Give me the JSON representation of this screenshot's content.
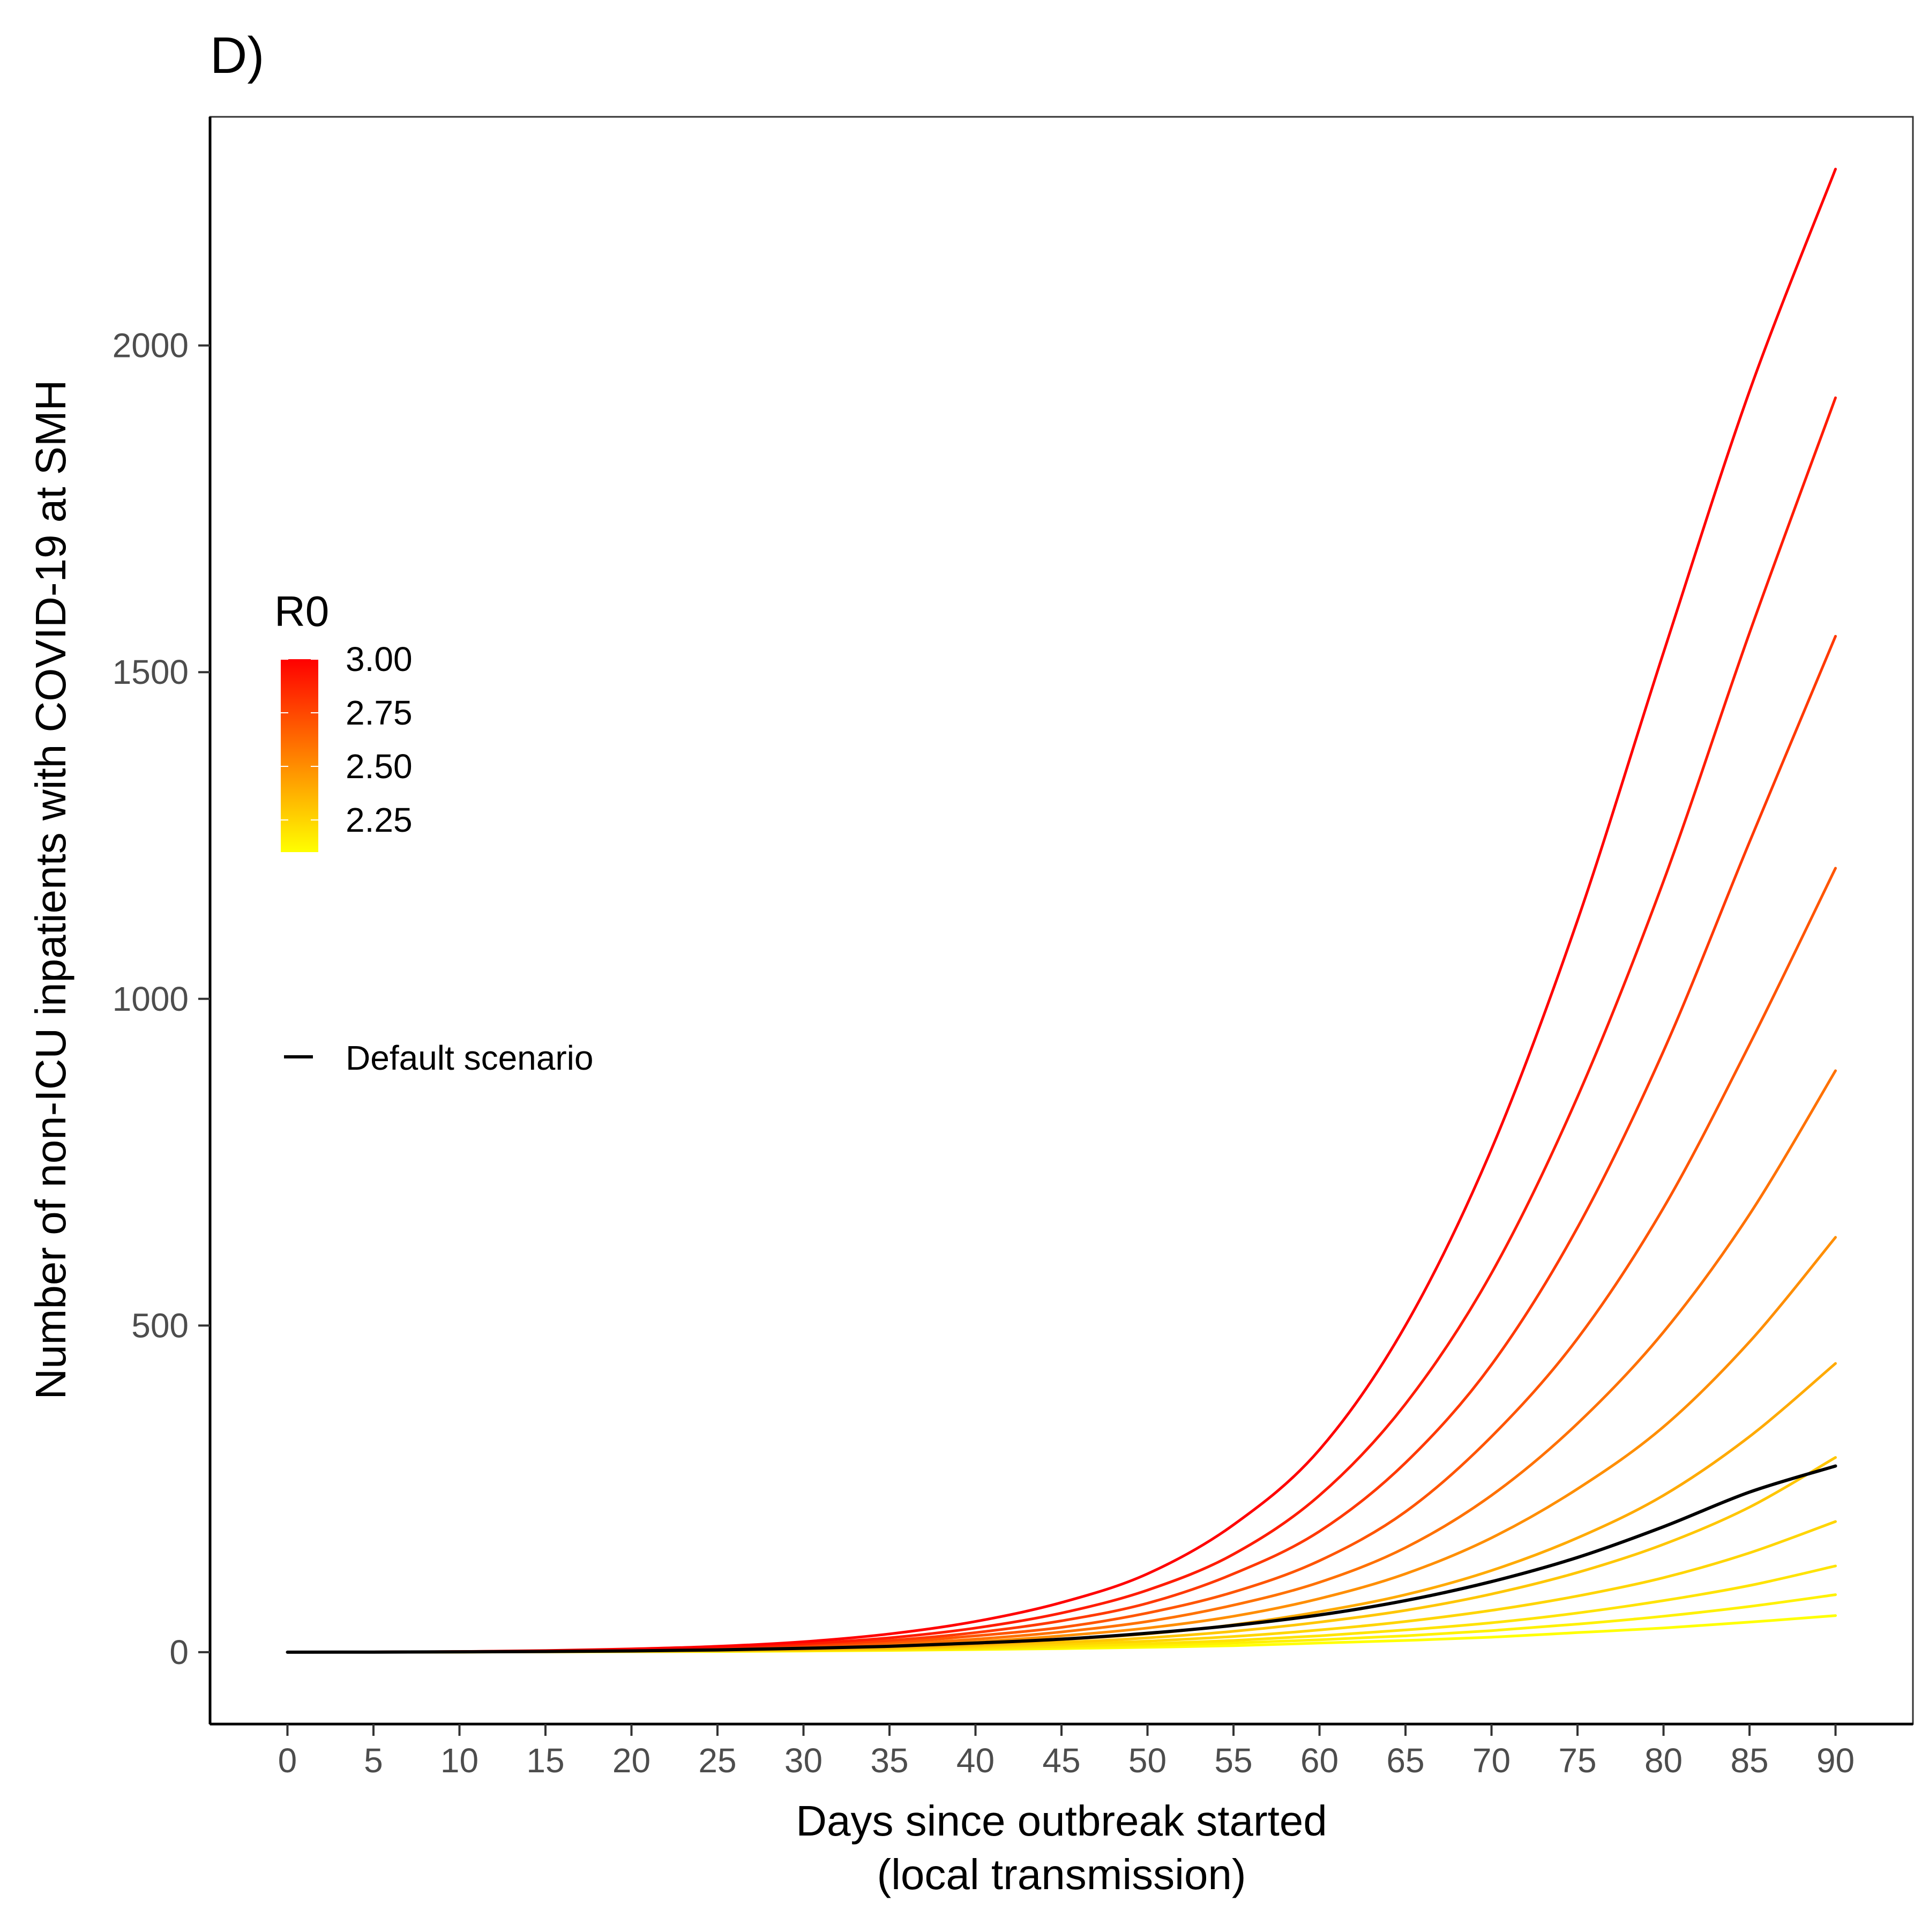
{
  "chart_data": {
    "type": "line",
    "title": "D)",
    "xlabel_lines": [
      "Days since outbreak started",
      "(local transmission)"
    ],
    "ylabel": "Number of non-ICU inpatients with COVID-19 at SMH",
    "xlim": [
      -4.5,
      94.5
    ],
    "ylim": [
      -110,
      2350
    ],
    "x_ticks": [
      0,
      5,
      10,
      15,
      20,
      25,
      30,
      35,
      40,
      45,
      50,
      55,
      60,
      65,
      70,
      75,
      80,
      85,
      90
    ],
    "y_ticks": [
      0,
      500,
      1000,
      1500,
      2000
    ],
    "grid": false,
    "x": [
      0,
      5,
      10,
      15,
      20,
      25,
      30,
      35,
      40,
      45,
      50,
      55,
      60,
      65,
      70,
      75,
      80,
      85,
      90
    ],
    "colorbar": {
      "title": "R0",
      "min": 2.1,
      "max": 3.0,
      "ticks": [
        "3.00",
        "2.75",
        "2.50",
        "2.25"
      ],
      "tick_values": [
        3.0,
        2.75,
        2.5,
        2.25
      ],
      "low_color": "#FFFF00",
      "high_color": "#FF0000",
      "placement": "left-inside"
    },
    "series": [
      {
        "r0": 3.0,
        "values": [
          0,
          0.3,
          1,
          2.5,
          5,
          9,
          16,
          28,
          47,
          76,
          120,
          195,
          310,
          500,
          770,
          1120,
          1530,
          1930,
          2270
        ]
      },
      {
        "r0": 2.9,
        "values": [
          0,
          0.3,
          0.9,
          2,
          4,
          7,
          13,
          22,
          37,
          60,
          95,
          150,
          240,
          380,
          580,
          850,
          1180,
          1560,
          1920
        ]
      },
      {
        "r0": 2.8,
        "values": [
          0,
          0.2,
          0.8,
          1.8,
          3.5,
          6,
          11,
          18,
          30,
          48,
          75,
          120,
          185,
          290,
          440,
          650,
          920,
          1240,
          1555
        ]
      },
      {
        "r0": 2.7,
        "values": [
          0,
          0.2,
          0.7,
          1.5,
          3,
          5,
          9,
          15,
          25,
          38,
          60,
          92,
          140,
          215,
          330,
          480,
          680,
          930,
          1200
        ]
      },
      {
        "r0": 2.6,
        "values": [
          0,
          0.2,
          0.6,
          1.3,
          2.5,
          4.5,
          7.5,
          12,
          20,
          31,
          47,
          72,
          107,
          160,
          240,
          350,
          490,
          670,
          890
        ]
      },
      {
        "r0": 2.5,
        "values": [
          0,
          0.2,
          0.5,
          1.1,
          2,
          3.5,
          6,
          10,
          16,
          25,
          37,
          55,
          82,
          120,
          175,
          250,
          345,
          475,
          635
        ]
      },
      {
        "r0": 2.4,
        "values": [
          0,
          0.1,
          0.4,
          0.9,
          1.7,
          3,
          5,
          8,
          12,
          19,
          28,
          42,
          62,
          88,
          125,
          175,
          240,
          330,
          442
        ]
      },
      {
        "r0": 2.3,
        "values": [
          0,
          0.1,
          0.4,
          0.8,
          1.4,
          2.5,
          4,
          6,
          10,
          15,
          22,
          32,
          46,
          64,
          89,
          122,
          165,
          222,
          298
        ]
      },
      {
        "r0": 2.25,
        "values": [
          0,
          0.1,
          0.3,
          0.7,
          1.2,
          2,
          3.3,
          5,
          8,
          12,
          17,
          24,
          34,
          47,
          64,
          86,
          114,
          152,
          200
        ]
      },
      {
        "r0": 2.2,
        "values": [
          0,
          0.1,
          0.3,
          0.6,
          1,
          1.7,
          2.7,
          4,
          6,
          9,
          13,
          18,
          25,
          34,
          45,
          60,
          79,
          102,
          132
        ]
      },
      {
        "r0": 2.15,
        "values": [
          0,
          0.1,
          0.2,
          0.5,
          0.8,
          1.4,
          2.2,
          3.3,
          5,
          7,
          10,
          14,
          19,
          25,
          33,
          43,
          55,
          70,
          88
        ]
      },
      {
        "r0": 2.1,
        "values": [
          0,
          0.1,
          0.2,
          0.4,
          0.7,
          1.1,
          1.8,
          2.7,
          4,
          5.5,
          7.5,
          10,
          14,
          18,
          23,
          30,
          37,
          46,
          56
        ]
      }
    ],
    "default_series": {
      "name": "Default scenario",
      "color": "#000000",
      "values": [
        0,
        0.2,
        0.5,
        1.1,
        2,
        3.5,
        6,
        9,
        14,
        20,
        29,
        41,
        57,
        79,
        108,
        145,
        192,
        245,
        285
      ]
    }
  }
}
